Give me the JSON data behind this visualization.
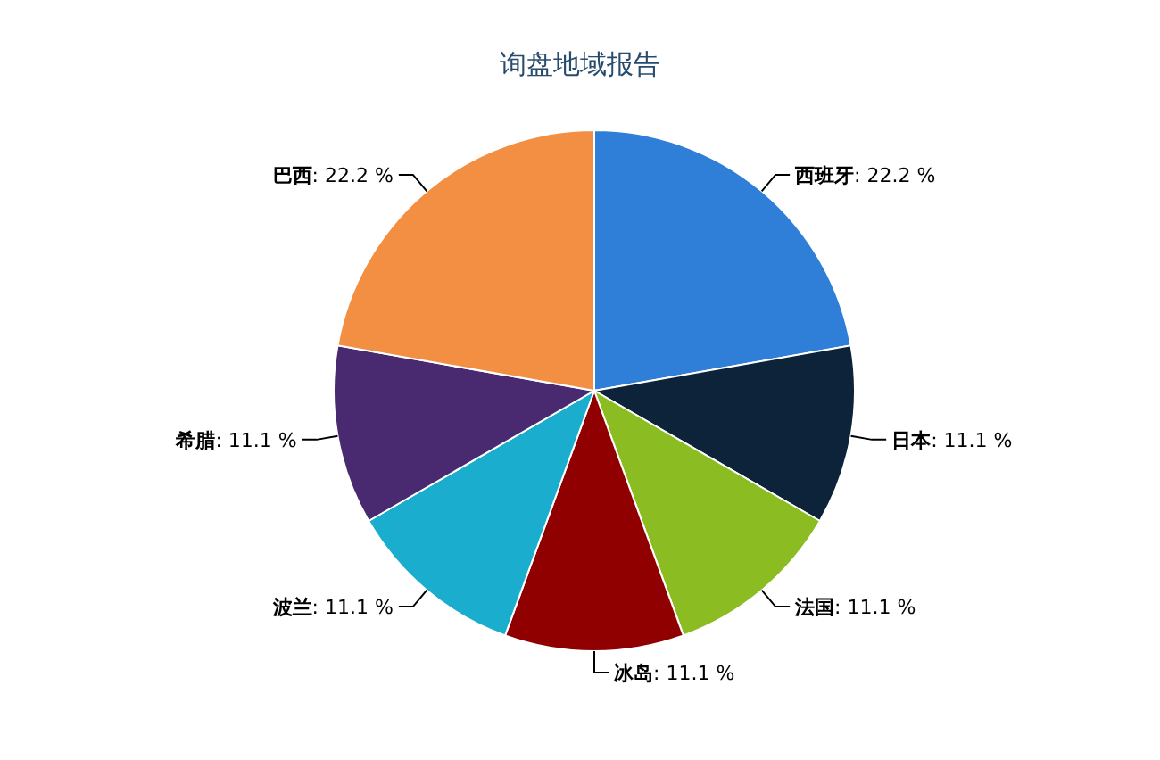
{
  "chart_data": {
    "type": "pie",
    "title": "询盘地域报告",
    "categories": [
      "西班牙",
      "日本",
      "法国",
      "冰岛",
      "波兰",
      "希腊",
      "巴西"
    ],
    "values": [
      22.2,
      11.1,
      11.1,
      11.1,
      11.1,
      11.1,
      22.2
    ],
    "value_labels": [
      ": 22.2 %",
      ": 11.1 %",
      ": 11.1 %",
      ": 11.1 %",
      ": 11.1 %",
      ": 11.1 %",
      ": 22.2 %"
    ],
    "colors": [
      "#2f7ed8",
      "#0d233a",
      "#8bbc21",
      "#910000",
      "#1aadce",
      "#492970",
      "#f28f43"
    ],
    "legend": false
  }
}
